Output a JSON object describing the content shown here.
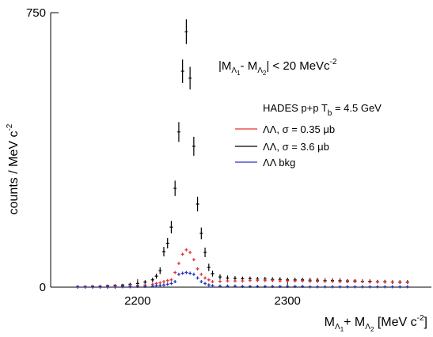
{
  "chart_data": {
    "type": "scatter",
    "annotation": [
      "|M",
      "Λ",
      "1",
      "- M",
      "Λ",
      "2",
      "| < 20 MeVc",
      "-2"
    ],
    "legend_title": [
      "HADES p+p T",
      "b",
      " = 4.5 GeV"
    ],
    "x_label": [
      "M",
      "Λ",
      "1",
      "+ M",
      "Λ",
      "2",
      " [MeV c",
      "-2",
      "]"
    ],
    "y_label": [
      "counts / MeV c",
      "-2"
    ],
    "xlim": [
      2142,
      2396
    ],
    "xticks": [
      2200,
      2300
    ],
    "ylim": [
      0,
      750
    ],
    "yticks": [
      0,
      750
    ],
    "x": [
      2160,
      2165,
      2170,
      2175,
      2180,
      2185,
      2190,
      2195,
      2200,
      2205,
      2210,
      2212.5,
      2215,
      2217.5,
      2220,
      2222.5,
      2225,
      2227.5,
      2230,
      2232.5,
      2235,
      2237.5,
      2240,
      2242.5,
      2245,
      2247.5,
      2250,
      2255,
      2260,
      2265,
      2270,
      2275,
      2280,
      2285,
      2290,
      2295,
      2300,
      2305,
      2310,
      2315,
      2320,
      2325,
      2330,
      2335,
      2340,
      2345,
      2350,
      2355,
      2360,
      2365,
      2370,
      2375,
      2380
    ],
    "series": [
      {
        "name": "ΛΛ, σ = 0.35 μb",
        "color": "#e03030",
        "values": [
          1,
          1,
          2,
          2,
          2,
          3,
          3,
          4,
          5,
          6,
          8,
          10,
          12,
          15,
          18,
          20,
          40,
          65,
          90,
          102,
          95,
          75,
          50,
          35,
          25,
          20,
          15,
          16,
          17,
          17,
          17,
          18,
          18,
          18,
          18,
          17,
          17,
          17,
          17,
          16,
          16,
          16,
          16,
          15,
          15,
          15,
          15,
          14,
          14,
          14,
          14,
          13,
          13
        ]
      },
      {
        "name": "ΛΛ, σ = 3.6 μb",
        "color": "#000000",
        "values": [
          2,
          2,
          3,
          3,
          4,
          5,
          6,
          8,
          10,
          14,
          20,
          30,
          45,
          97,
          120,
          164,
          270,
          424,
          590,
          698,
          571,
          385,
          227,
          147,
          95,
          54,
          37,
          28,
          25,
          24,
          23,
          23,
          22,
          22,
          21,
          21,
          20,
          20,
          20,
          19,
          19,
          18,
          18,
          18,
          17,
          17,
          16,
          16,
          15,
          15,
          14,
          14,
          14
        ],
        "errors": [
          2,
          2,
          2,
          2,
          3,
          3,
          3,
          4,
          4,
          5,
          6,
          7,
          9,
          13,
          14,
          17,
          21,
          27,
          32,
          34,
          31,
          26,
          20,
          16,
          13,
          10,
          8,
          7,
          7,
          6,
          6,
          6,
          6,
          6,
          6,
          6,
          6,
          6,
          6,
          6,
          6,
          6,
          6,
          6,
          5,
          5,
          5,
          5,
          5,
          5,
          5,
          5,
          5
        ]
      },
      {
        "name": "ΛΛ bkg",
        "color": "#2030c0",
        "values": [
          0,
          0,
          0,
          0,
          0,
          0,
          1,
          1,
          2,
          2,
          3,
          4,
          5,
          6,
          8,
          10,
          15,
          35,
          38,
          40,
          38,
          35,
          25,
          15,
          10,
          6,
          4,
          3,
          3,
          3,
          2,
          2,
          2,
          2,
          2,
          2,
          2,
          2,
          2,
          1,
          1,
          1,
          1,
          1,
          1,
          1,
          1,
          1,
          1,
          1,
          1,
          1,
          1
        ]
      }
    ]
  }
}
